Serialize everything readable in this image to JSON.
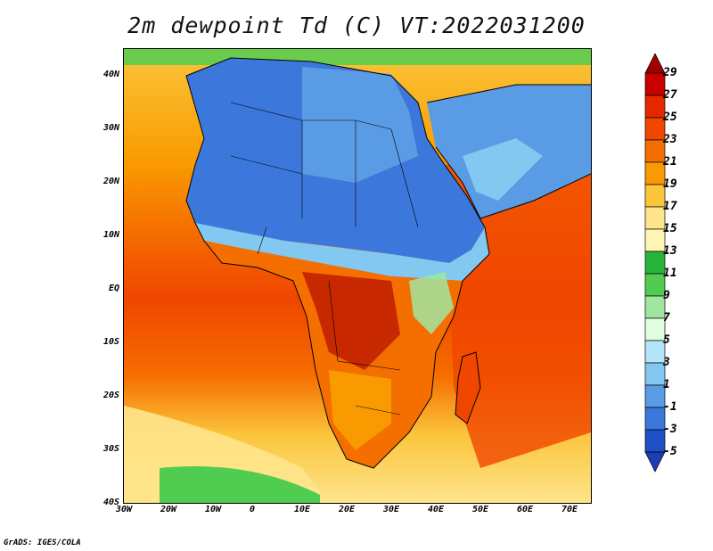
{
  "title": "2m dewpoint Td (C) VT:2022031200",
  "credit": "GrADS: IGES/COLA",
  "lat_labels": [
    "40N",
    "30N",
    "20N",
    "10N",
    "EQ",
    "10S",
    "20S",
    "30S",
    "40S"
  ],
  "lon_labels": [
    "30W",
    "20W",
    "10W",
    "0",
    "10E",
    "20E",
    "30E",
    "40E",
    "50E",
    "60E",
    "70E"
  ],
  "colorbar": {
    "labels": [
      "29",
      "27",
      "25",
      "23",
      "21",
      "19",
      "17",
      "15",
      "13",
      "11",
      "9",
      "7",
      "5",
      "3",
      "1",
      "-1",
      "-3",
      "-5"
    ],
    "colors": [
      "#a00000",
      "#c80000",
      "#e62800",
      "#f04600",
      "#f56e00",
      "#f99b00",
      "#fbc53c",
      "#fee48c",
      "#fff4b4",
      "#28b43c",
      "#50cd50",
      "#a0e6a0",
      "#e1ffe1",
      "#b4e6fa",
      "#82c8f0",
      "#5a9be6",
      "#3c78dc",
      "#1e50c8",
      "#1e3cb4"
    ]
  },
  "map_colors": {
    "ocean_warm": "#f04600",
    "ocean_mid": "#f56e00",
    "ocean_cool": "#fbc53c",
    "sahara": "#3c78dc",
    "sahel": "#82c8f0",
    "congo": "#c82800",
    "green_band": "#50cd50"
  }
}
